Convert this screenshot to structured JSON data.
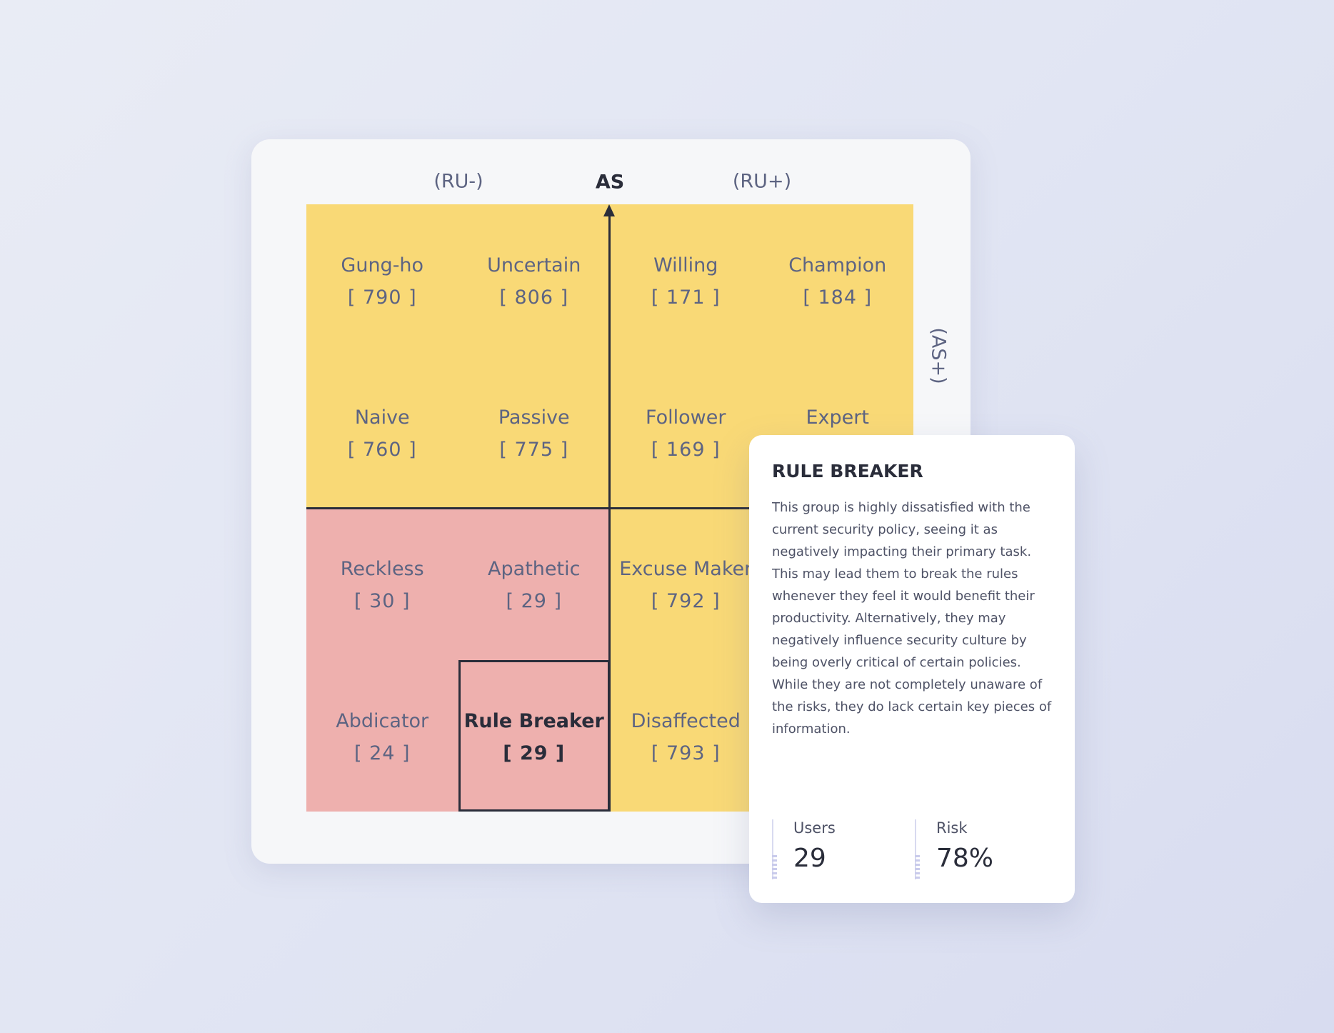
{
  "axes": {
    "top_left": "(RU-)",
    "top_center": "AS",
    "top_right": "(RU+)",
    "right": "(AS+)"
  },
  "colors": {
    "compliant_zone": "#f9d976",
    "risk_zone": "#eeb0ae",
    "text": "#5d6482",
    "axis": "#2a2d3a"
  },
  "cells": [
    {
      "name": "Gung-ho",
      "count": "[ 790 ]",
      "zone": "yellow"
    },
    {
      "name": "Uncertain",
      "count": "[ 806 ]",
      "zone": "yellow"
    },
    {
      "name": "Willing",
      "count": "[ 171 ]",
      "zone": "yellow"
    },
    {
      "name": "Champion",
      "count": "[ 184 ]",
      "zone": "yellow"
    },
    {
      "name": "Naive",
      "count": "[ 760 ]",
      "zone": "yellow"
    },
    {
      "name": "Passive",
      "count": "[ 775 ]",
      "zone": "yellow"
    },
    {
      "name": "Follower",
      "count": "[ 169 ]",
      "zone": "yellow"
    },
    {
      "name": "Expert",
      "zone": "yellow"
    },
    {
      "name": "Reckless",
      "count": "[ 30 ]",
      "zone": "pink"
    },
    {
      "name": "Apathetic",
      "count": "[ 29 ]",
      "zone": "pink"
    },
    {
      "name": "Excuse Maker",
      "count": "[ 792 ]",
      "zone": "yellow"
    },
    {
      "name": "Abdicator",
      "count": "[ 24 ]",
      "zone": "pink"
    },
    {
      "name": "Rule Breaker",
      "count": "[ 29 ]",
      "zone": "pink",
      "selected": true
    },
    {
      "name": "Disaffected",
      "count": "[ 793 ]",
      "zone": "yellow"
    }
  ],
  "detail": {
    "title": "RULE BREAKER",
    "description": "This group is highly dissatisfied with the current security policy, seeing it as negatively impacting their primary task. This may lead them to break the rules whenever they feel it would benefit their productivity. Alternatively, they may negatively influence security culture by being overly critical of certain policies. While they are not completely unaware of the risks, they do lack certain key pieces of information.",
    "users_label": "Users",
    "users_value": "29",
    "risk_label": "Risk",
    "risk_value": "78%"
  }
}
